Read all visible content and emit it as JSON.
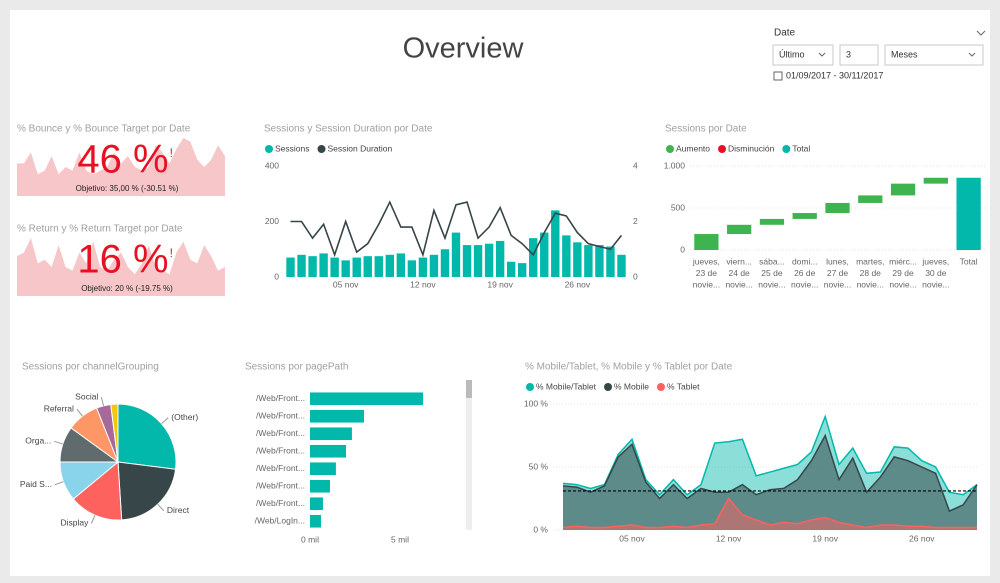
{
  "header": {
    "title": "Overview"
  },
  "slicer": {
    "label": "Date",
    "mode": "Último",
    "count": 3,
    "unit": "Meses",
    "range": "01/09/2017 - 30/11/2017"
  },
  "chart_data": [
    {
      "type": "kpi",
      "title": "% Bounce y % Bounce Target por Date",
      "value": 46,
      "value_label": "46 %",
      "alert": "!",
      "goal": "Objetivo: 35,00 % (-30.51 %)",
      "color": "#e81123",
      "trend_color": "#f7c6c9",
      "trend": [
        45,
        45,
        60,
        30,
        35,
        55,
        30,
        40,
        35,
        60,
        35,
        30,
        35,
        40,
        60,
        45,
        55,
        40,
        35,
        40,
        70,
        60,
        45,
        65,
        80,
        75,
        50,
        40,
        50,
        70,
        55
      ]
    },
    {
      "type": "kpi",
      "title": "% Return y % Return Target por Date",
      "value": 16,
      "value_label": "16 %",
      "alert": "!",
      "goal": "Objetivo: 20 % (-19.75 %)",
      "color": "#e81123",
      "trend_color": "#f7c6c9",
      "trend": [
        55,
        60,
        80,
        45,
        50,
        40,
        70,
        40,
        35,
        60,
        45,
        75,
        40,
        35,
        50,
        60,
        40,
        30,
        45,
        70,
        40,
        35,
        30,
        60,
        75,
        50,
        45,
        70,
        55,
        35,
        40
      ]
    },
    {
      "type": "combo",
      "title": "Sessions y Session Duration por Date",
      "categories": [
        null,
        null,
        null,
        null,
        null,
        "05 nov",
        null,
        null,
        null,
        null,
        null,
        null,
        "12 nov",
        null,
        null,
        null,
        null,
        null,
        null,
        "19 nov",
        null,
        null,
        null,
        null,
        null,
        null,
        "26 nov",
        null,
        null,
        null,
        null
      ],
      "ylim": [
        0,
        400
      ],
      "yticks": [
        0,
        200,
        400
      ],
      "y2lim": [
        0,
        4
      ],
      "y2ticks": [
        0,
        2,
        4
      ],
      "series": [
        {
          "name": "Sessions",
          "color": "#01b8aa",
          "axis": "y",
          "values": [
            70,
            80,
            75,
            85,
            70,
            60,
            70,
            75,
            75,
            80,
            85,
            60,
            70,
            80,
            100,
            160,
            115,
            115,
            120,
            130,
            55,
            50,
            140,
            160,
            240,
            150,
            125,
            115,
            115,
            110,
            80
          ]
        },
        {
          "name": "Session Duration",
          "color": "#374649",
          "axis": "y2",
          "values": [
            2.0,
            2.0,
            1.4,
            1.9,
            0.8,
            2.0,
            0.9,
            1.2,
            1.9,
            2.7,
            1.8,
            1.8,
            0.8,
            2.4,
            1.4,
            2.6,
            2.7,
            1.4,
            1.8,
            2.5,
            1.5,
            1.2,
            0.8,
            1.6,
            2.3,
            2.2,
            1.6,
            1.2,
            1.1,
            1.0,
            1.5
          ]
        }
      ]
    },
    {
      "type": "waterfall",
      "title": "Sessions por Date",
      "legend": [
        {
          "name": "Aumento",
          "color": "#3fb34f"
        },
        {
          "name": "Disminución",
          "color": "#e81123"
        },
        {
          "name": "Total",
          "color": "#01b8aa"
        }
      ],
      "categories": [
        [
          "jueves,",
          "23 de",
          "novie..."
        ],
        [
          "viern...",
          "24 de",
          "novie..."
        ],
        [
          "sába...",
          "25 de",
          "novie..."
        ],
        [
          "domi...",
          "26 de",
          "novie..."
        ],
        [
          "lunes,",
          "27 de",
          "novie..."
        ],
        [
          "martes,",
          "28 de",
          "novie..."
        ],
        [
          "miérc...",
          "29 de",
          "novie..."
        ],
        [
          "jueves,",
          "30 de",
          "novie..."
        ],
        [
          "Total"
        ]
      ],
      "values": [
        190,
        110,
        70,
        70,
        120,
        90,
        140,
        70,
        860
      ],
      "ylim": [
        0,
        1000
      ],
      "yticks": [
        0,
        500,
        {
          "value": 1000,
          "label": "1.000"
        }
      ],
      "grid": true
    },
    {
      "type": "pie",
      "title": "Sessions por channelGrouping",
      "categories": [
        "(Other)",
        "Direct",
        "Display",
        "Paid S...",
        "Orga...",
        "Referral",
        "Social",
        null
      ],
      "values": [
        27,
        22,
        15,
        11,
        10,
        9,
        4,
        2
      ],
      "colors": [
        "#01b8aa",
        "#374649",
        "#fd625e",
        "#8ad4eb",
        "#5f6b6d",
        "#fe9666",
        "#a66999",
        "#f2c80f"
      ]
    },
    {
      "type": "hbar",
      "title": "Sessions por pagePath",
      "categories": [
        "/Web/Front...",
        "/Web/Front...",
        "/Web/Front...",
        "/Web/Front...",
        "/Web/Front...",
        "/Web/Front...",
        "/Web/Front...",
        "/Web/LogIn..."
      ],
      "values": [
        6280,
        3000,
        2330,
        2000,
        1440,
        1110,
        720,
        610
      ],
      "color": "#01b8aa",
      "xlim": [
        0,
        7000
      ],
      "xticks": [
        {
          "value": 0,
          "label": "0 mil"
        },
        {
          "value": 5000,
          "label": "5 mil"
        }
      ]
    },
    {
      "type": "area",
      "title": "% Mobile/Tablet, % Mobile y % Tablet por Date",
      "categories": [
        null,
        null,
        null,
        null,
        null,
        "05 nov",
        null,
        null,
        null,
        null,
        null,
        null,
        "12 nov",
        null,
        null,
        null,
        null,
        null,
        null,
        "19 nov",
        null,
        null,
        null,
        null,
        null,
        null,
        "26 nov",
        null,
        null,
        null,
        null
      ],
      "ylim": [
        0,
        100
      ],
      "yticks": [
        {
          "value": 0,
          "label": "0 %"
        },
        {
          "value": 50,
          "label": "50 %"
        },
        {
          "value": 100,
          "label": "100 %"
        }
      ],
      "grid": true,
      "reference": 31,
      "series": [
        {
          "name": "% Mobile/Tablet",
          "color": "#01b8aa",
          "values": [
            37,
            36,
            33,
            36,
            60,
            72,
            40,
            28,
            40,
            28,
            36,
            69,
            70,
            72,
            43,
            46,
            49,
            52,
            62,
            90,
            52,
            65,
            45,
            46,
            66,
            65,
            55,
            50,
            30,
            28,
            36
          ]
        },
        {
          "name": "% Mobile",
          "color": "#374649",
          "values": [
            35,
            34,
            30,
            35,
            58,
            68,
            38,
            25,
            36,
            25,
            33,
            30,
            30,
            36,
            28,
            32,
            33,
            40,
            55,
            75,
            40,
            57,
            30,
            42,
            58,
            55,
            50,
            45,
            15,
            20,
            36
          ]
        },
        {
          "name": "% Tablet",
          "color": "#fd625e",
          "values": [
            2,
            3,
            2,
            2,
            3,
            4,
            2,
            2,
            3,
            2,
            4,
            5,
            25,
            12,
            8,
            4,
            6,
            5,
            8,
            10,
            6,
            4,
            2,
            4,
            4,
            3,
            3,
            2,
            2,
            2,
            2
          ]
        }
      ]
    }
  ]
}
